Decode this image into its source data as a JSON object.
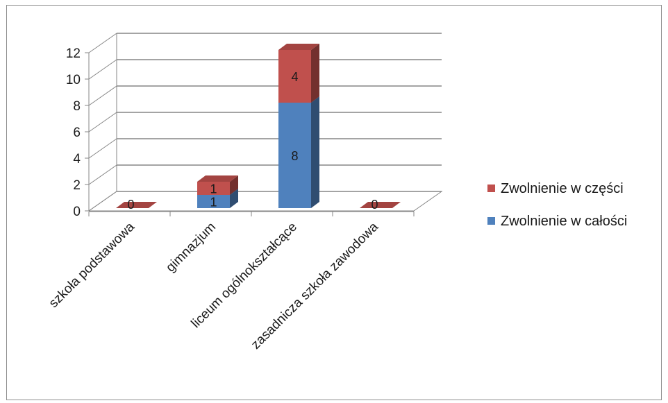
{
  "chart_data": {
    "type": "bar",
    "stacked": true,
    "three_d": true,
    "categories": [
      "szkoła podstawowa",
      "gimnazjum",
      "liceum ogólnokształcące",
      "zasadnicza szkoła zawodowa"
    ],
    "series": [
      {
        "name": "Zwolnienie w całości",
        "values": [
          0,
          1,
          8,
          0
        ],
        "color": "#4f81bd"
      },
      {
        "name": "Zwolnienie w części",
        "values": [
          0,
          1,
          4,
          0
        ],
        "color": "#c0504d"
      }
    ],
    "ylim": [
      0,
      12
    ],
    "yticks": [
      0,
      2,
      4,
      6,
      8,
      10,
      12
    ],
    "grid": true,
    "legend_position": "right",
    "legend_order": [
      "Zwolnienie w części",
      "Zwolnienie w całości"
    ]
  }
}
